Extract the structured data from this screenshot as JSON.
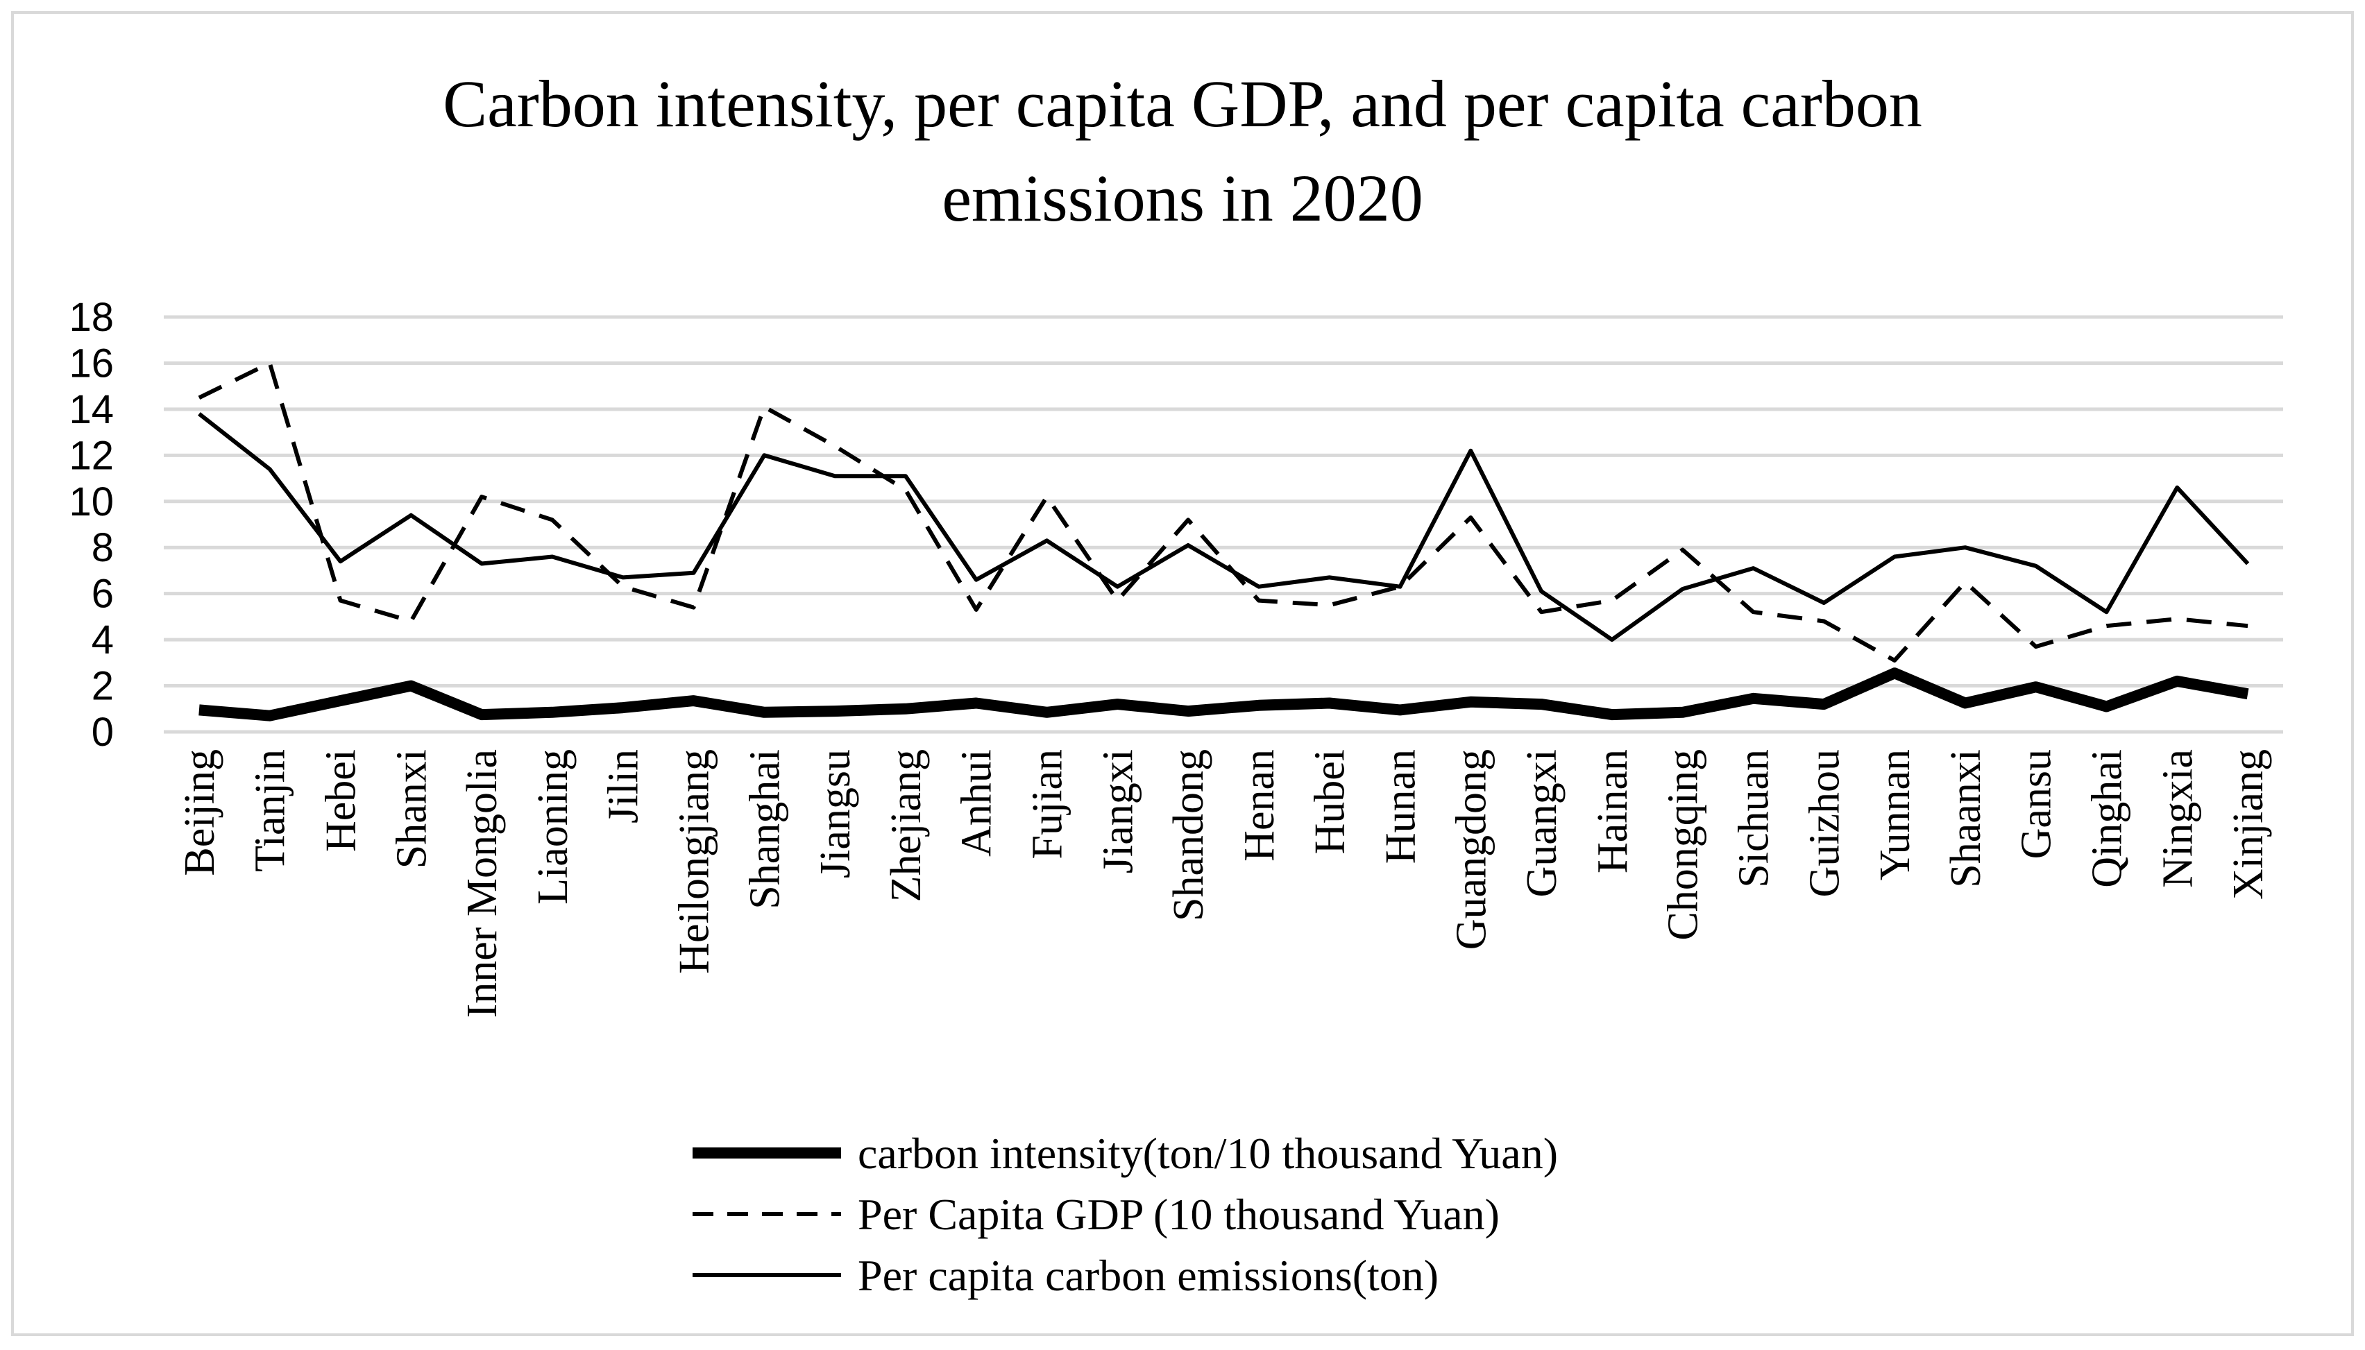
{
  "chart_data": {
    "type": "line",
    "title": [
      "Carbon intensity, per capita GDP, and per capita carbon",
      "emissions in 2020"
    ],
    "xlabel": "",
    "ylabel": "",
    "ylim": [
      0,
      18
    ],
    "yticks": [
      "0",
      "2",
      "4",
      "6",
      "8",
      "10",
      "12",
      "14",
      "16",
      "18"
    ],
    "grid": true,
    "legend_position": "bottom",
    "categories": [
      "Beijing",
      "Tianjin",
      "Hebei",
      "Shanxi",
      "Inner Mongolia",
      "Liaoning",
      "Jilin",
      "Heilongjiang",
      "Shanghai",
      "Jiangsu",
      "Zhejiang",
      "Anhui",
      "Fujian",
      "Jiangxi",
      "Shandong",
      "Henan",
      "Hubei",
      "Hunan",
      "Guangdong",
      "Guangxi",
      "Hainan",
      "Chongqing",
      "Sichuan",
      "Guizhou",
      "Yunnan",
      "Shaanxi",
      "Gansu",
      "Qinghai",
      "Ningxia",
      "Xinjiang"
    ],
    "series": [
      {
        "name": "carbon intensity(ton/10 thousand Yuan)",
        "style": "thick",
        "values": [
          0.95,
          0.7,
          1.35,
          2.0,
          0.75,
          0.85,
          1.05,
          1.35,
          0.85,
          0.9,
          1.0,
          1.25,
          0.85,
          1.2,
          0.9,
          1.15,
          1.25,
          0.95,
          1.3,
          1.2,
          0.75,
          0.85,
          1.45,
          1.2,
          2.55,
          1.25,
          1.95,
          1.1,
          2.2,
          1.65
        ]
      },
      {
        "name": "Per Capita GDP (10 thousand Yuan)",
        "style": "dashed",
        "values": [
          14.5,
          16.0,
          5.7,
          4.8,
          10.2,
          9.2,
          6.3,
          5.4,
          14.1,
          12.4,
          10.5,
          5.3,
          10.2,
          5.7,
          9.2,
          5.7,
          5.5,
          6.3,
          9.3,
          5.2,
          5.7,
          7.9,
          5.2,
          4.8,
          3.1,
          6.5,
          3.7,
          4.6,
          4.9,
          4.6
        ]
      },
      {
        "name": "Per capita carbon emissions(ton)",
        "style": "solid",
        "values": [
          13.8,
          11.4,
          7.4,
          9.4,
          7.3,
          7.6,
          6.7,
          6.9,
          12.0,
          11.1,
          11.1,
          6.6,
          8.3,
          6.3,
          8.1,
          6.3,
          6.7,
          6.3,
          12.2,
          6.1,
          4.0,
          6.2,
          7.1,
          5.6,
          7.6,
          8.0,
          7.2,
          5.2,
          10.6,
          7.3
        ]
      }
    ]
  }
}
